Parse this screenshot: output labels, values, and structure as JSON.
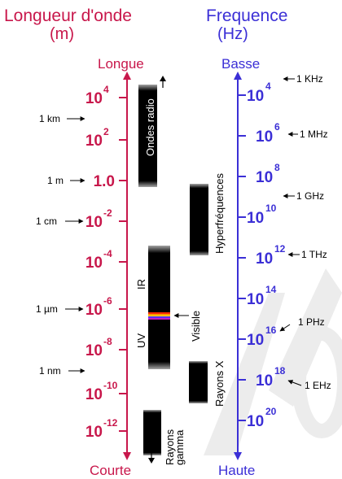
{
  "colors": {
    "wavelength": "#c8174b",
    "frequency": "#3b2fd6",
    "band": "#000000",
    "text": "#000000",
    "watermark": "#e8e8e8"
  },
  "wavelength": {
    "title_line1": "Longueur d'onde",
    "title_line2": "(m)",
    "top_label": "Longue",
    "bottom_label": "Courte",
    "ticks": [
      {
        "base": "10",
        "exp": "4"
      },
      {
        "base": "10",
        "exp": "2"
      },
      {
        "base": "1.0",
        "exp": ""
      },
      {
        "base": "10",
        "exp": "-2"
      },
      {
        "base": "10",
        "exp": "-4"
      },
      {
        "base": "10",
        "exp": "-6"
      },
      {
        "base": "10",
        "exp": "-8"
      },
      {
        "base": "10",
        "exp": "-10"
      },
      {
        "base": "10",
        "exp": "-12"
      }
    ],
    "markers": [
      "1 km",
      "1 m",
      "1 cm",
      "1 µm",
      "1 nm"
    ]
  },
  "frequency": {
    "title_line1": "Frequence",
    "title_line2": "(Hz)",
    "top_label": "Basse",
    "bottom_label": "Haute",
    "ticks": [
      {
        "base": "10",
        "exp": "4"
      },
      {
        "base": "10",
        "exp": "6"
      },
      {
        "base": "10",
        "exp": "8"
      },
      {
        "base": "10",
        "exp": "10"
      },
      {
        "base": "10",
        "exp": "12"
      },
      {
        "base": "10",
        "exp": "14"
      },
      {
        "base": "10",
        "exp": "16"
      },
      {
        "base": "10",
        "exp": "18"
      },
      {
        "base": "10",
        "exp": "20"
      }
    ],
    "markers": [
      "1 KHz",
      "1 MHz",
      "1 GHz",
      "1 THz",
      "1 PHz",
      "1 EHz"
    ]
  },
  "bands": {
    "radio": "Ondes radio",
    "micro": "Hyperfréquences",
    "ir": "IR",
    "visible": "Visible",
    "uv": "UV",
    "xray": "Rayons X",
    "gamma_line1": "Rayons",
    "gamma_line2": "gamma"
  }
}
